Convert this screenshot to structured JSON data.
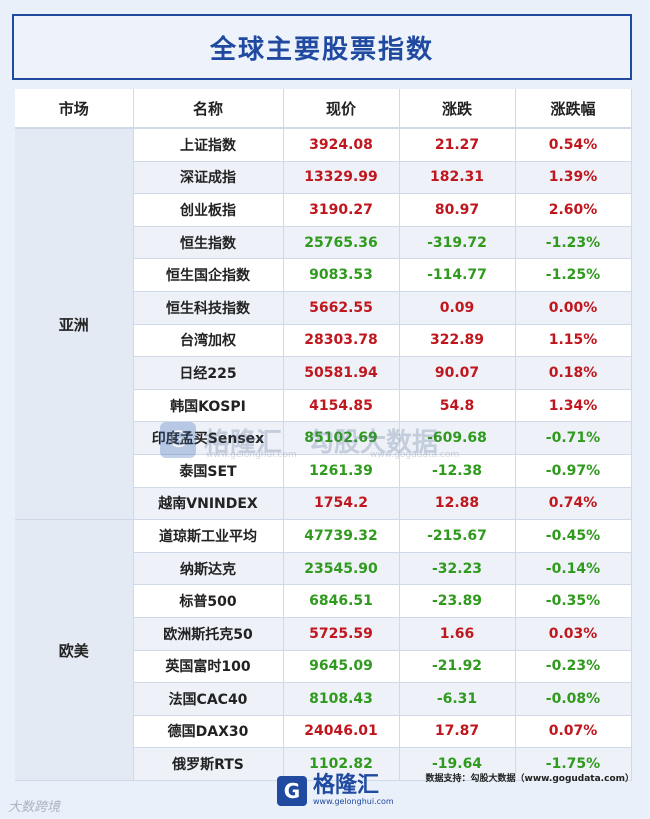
{
  "title": "全球主要股票指数",
  "headers": [
    "市场",
    "名称",
    "现价",
    "涨跌",
    "涨跌幅"
  ],
  "markets": [
    {
      "name": "亚洲",
      "rows": [
        {
          "name": "上证指数",
          "price": "3924.08",
          "change": "21.27",
          "pct": "0.54%",
          "dir": "up"
        },
        {
          "name": "深证成指",
          "price": "13329.99",
          "change": "182.31",
          "pct": "1.39%",
          "dir": "up"
        },
        {
          "name": "创业板指",
          "price": "3190.27",
          "change": "80.97",
          "pct": "2.60%",
          "dir": "up"
        },
        {
          "name": "恒生指数",
          "price": "25765.36",
          "change": "-319.72",
          "pct": "-1.23%",
          "dir": "down"
        },
        {
          "name": "恒生国企指数",
          "price": "9083.53",
          "change": "-114.77",
          "pct": "-1.25%",
          "dir": "down"
        },
        {
          "name": "恒生科技指数",
          "price": "5662.55",
          "change": "0.09",
          "pct": "0.00%",
          "dir": "up"
        },
        {
          "name": "台湾加权",
          "price": "28303.78",
          "change": "322.89",
          "pct": "1.15%",
          "dir": "up"
        },
        {
          "name": "日经225",
          "price": "50581.94",
          "change": "90.07",
          "pct": "0.18%",
          "dir": "up"
        },
        {
          "name": "韩国KOSPI",
          "price": "4154.85",
          "change": "54.8",
          "pct": "1.34%",
          "dir": "up"
        },
        {
          "name": "印度孟买Sensex",
          "price": "85102.69",
          "change": "-609.68",
          "pct": "-0.71%",
          "dir": "down"
        },
        {
          "name": "泰国SET",
          "price": "1261.39",
          "change": "-12.38",
          "pct": "-0.97%",
          "dir": "down"
        },
        {
          "name": "越南VNINDEX",
          "price": "1754.2",
          "change": "12.88",
          "pct": "0.74%",
          "dir": "up"
        }
      ]
    },
    {
      "name": "欧美",
      "rows": [
        {
          "name": "道琼斯工业平均",
          "price": "47739.32",
          "change": "-215.67",
          "pct": "-0.45%",
          "dir": "down"
        },
        {
          "name": "纳斯达克",
          "price": "23545.90",
          "change": "-32.23",
          "pct": "-0.14%",
          "dir": "down"
        },
        {
          "name": "标普500",
          "price": "6846.51",
          "change": "-23.89",
          "pct": "-0.35%",
          "dir": "down"
        },
        {
          "name": "欧洲斯托克50",
          "price": "5725.59",
          "change": "1.66",
          "pct": "0.03%",
          "dir": "up"
        },
        {
          "name": "英国富时100",
          "price": "9645.09",
          "change": "-21.92",
          "pct": "-0.23%",
          "dir": "down"
        },
        {
          "name": "法国CAC40",
          "price": "8108.43",
          "change": "-6.31",
          "pct": "-0.08%",
          "dir": "down"
        },
        {
          "name": "德国DAX30",
          "price": "24046.01",
          "change": "17.87",
          "pct": "0.07%",
          "dir": "up"
        },
        {
          "name": "俄罗斯RTS",
          "price": "1102.82",
          "change": "-19.64",
          "pct": "-1.75%",
          "dir": "down"
        }
      ]
    }
  ],
  "colors": {
    "up": "#c0161d",
    "down": "#2f9a1d",
    "brand": "#1f4aa0"
  },
  "watermark": {
    "brand": "格隆汇",
    "text": "勾股大数据",
    "url1": "www.gelonghui.com",
    "url2": "www.gogudata.com"
  },
  "footer": {
    "logo_name": "格隆汇",
    "logo_url": "www.gelonghui.com",
    "source": "数据支持：勾股大数据（www.gogudata.com）"
  },
  "corner_watermark": "大数跨境"
}
